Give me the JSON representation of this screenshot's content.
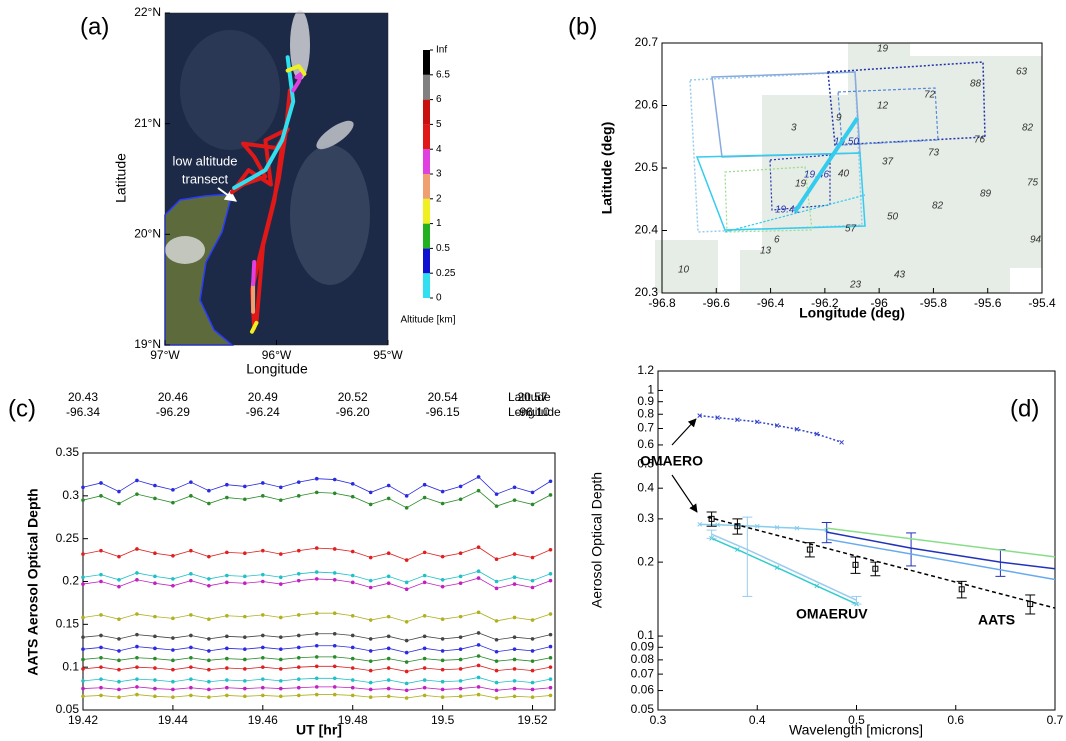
{
  "chart_data": [
    {
      "type": "map",
      "panel": "(a)",
      "xlabel": "Longitude",
      "ylabel": "Latitude",
      "xlim": [
        -97,
        -95
      ],
      "ylim": [
        19,
        22
      ],
      "xticks": [
        {
          "value": -97,
          "label": "97°W"
        },
        {
          "value": -96,
          "label": "96°W"
        },
        {
          "value": -95,
          "label": "95°W"
        }
      ],
      "yticks": [
        {
          "value": 19,
          "label": "19°N"
        },
        {
          "value": 20,
          "label": "20°N"
        },
        {
          "value": 21,
          "label": "21°N"
        },
        {
          "value": 22,
          "label": "22°N"
        }
      ],
      "annotation": [
        "low altitude",
        "transect"
      ],
      "track": [
        {
          "color": "#e01818",
          "lon": [
            -96.2,
            -96.22,
            -96.15,
            -96.05,
            -95.98,
            -95.92,
            -95.88
          ],
          "lat": [
            19.15,
            19.5,
            19.8,
            20.2,
            20.5,
            20.9,
            21.3
          ]
        },
        {
          "color": "#e01818",
          "lon": [
            -96.18,
            -96.12,
            -96.02,
            -95.95
          ],
          "lat": [
            19.2,
            19.9,
            20.3,
            20.8
          ]
        },
        {
          "color": "#f0a070",
          "lon": [
            -96.21,
            -96.21
          ],
          "lat": [
            19.3,
            19.55
          ]
        },
        {
          "color": "#e040e0",
          "lon": [
            -96.21,
            -96.2
          ],
          "lat": [
            19.55,
            19.75
          ]
        },
        {
          "color": "#e01818",
          "lon": [
            -96.4,
            -96.3,
            -96.1,
            -96.2,
            -96.3,
            -96.0,
            -95.9,
            -96.1,
            -96.05,
            -96.25,
            -96.4
          ],
          "lat": [
            20.38,
            20.45,
            20.52,
            20.7,
            20.82,
            20.78,
            20.95,
            20.85,
            20.45,
            20.58,
            20.38
          ]
        },
        {
          "color": "#30e0f0",
          "lon": [
            -96.38,
            -96.1,
            -95.95,
            -95.85,
            -95.9
          ],
          "lat": [
            20.42,
            20.58,
            20.85,
            21.2,
            21.6
          ]
        },
        {
          "color": "#e040e0",
          "lon": [
            -95.85,
            -95.8,
            -95.78,
            -95.82
          ],
          "lat": [
            21.3,
            21.38,
            21.45,
            21.42
          ]
        },
        {
          "color": "#f0f020",
          "lon": [
            -95.9,
            -95.8,
            -95.75
          ],
          "lat": [
            21.48,
            21.52,
            21.45
          ]
        },
        {
          "color": "#f0f020",
          "lon": [
            -96.22,
            -96.18
          ],
          "lat": [
            19.12,
            19.2
          ]
        }
      ],
      "colorbar": {
        "label": "Altitude [km]",
        "ticks": [
          0,
          0.25,
          0.5,
          1,
          2,
          3,
          4,
          5,
          6,
          6.5,
          "Inf"
        ],
        "colors": [
          "#30e0f0",
          "#1010d0",
          "#20b020",
          "#f0f020",
          "#f0a070",
          "#e040e0",
          "#e01818",
          "#c81010",
          "#808080",
          "#000000"
        ]
      }
    },
    {
      "type": "line",
      "panel": "(b)",
      "xlabel": "Longitude (deg)",
      "ylabel": "Latitude (deg)",
      "xlim": [
        -96.8,
        -95.4
      ],
      "ylim": [
        20.3,
        20.7
      ],
      "xticks": [
        -96.8,
        -96.6,
        -96.4,
        -96.2,
        -96,
        -95.8,
        -95.6,
        -95.4
      ],
      "yticks": [
        20.3,
        20.4,
        20.5,
        20.6,
        20.7
      ],
      "series": [
        {
          "color": "#33ccee",
          "x": [
            -96.31,
            -96.08
          ],
          "values": [
            20.43,
            20.58
          ]
        }
      ],
      "pixel_labels": [
        "19",
        "88",
        "63",
        "72",
        "12",
        "3",
        "9",
        "82",
        "19.50",
        "76",
        "73",
        "37",
        "40",
        "19.46",
        "19",
        "89",
        "75",
        "82",
        "50",
        "19.42",
        "57",
        "6",
        "13",
        "94",
        "10",
        "43",
        "23"
      ]
    },
    {
      "type": "line",
      "panel": "(c)",
      "xlabel": "UT [hr]",
      "ylabel": "AATS Aerosol Optical Depth",
      "xlim": [
        19.42,
        19.525
      ],
      "ylim": [
        0.05,
        0.35
      ],
      "xticks": [
        19.42,
        19.44,
        19.46,
        19.48,
        19.5,
        19.52
      ],
      "yticks": [
        0.05,
        0.1,
        0.15,
        0.2,
        0.25,
        0.3,
        0.35
      ],
      "x2label": "Latitude",
      "x3label": "Longitude",
      "x2ticks": [
        {
          "value": 19.42,
          "label": "20.43"
        },
        {
          "value": 19.44,
          "label": "20.46"
        },
        {
          "value": 19.46,
          "label": "20.49"
        },
        {
          "value": 19.48,
          "label": "20.52"
        },
        {
          "value": 19.5,
          "label": "20.54"
        },
        {
          "value": 19.52,
          "label": "20.57"
        }
      ],
      "x3ticks": [
        {
          "value": 19.42,
          "label": "-96.34"
        },
        {
          "value": 19.44,
          "label": "-96.29"
        },
        {
          "value": 19.46,
          "label": "-96.24"
        },
        {
          "value": 19.48,
          "label": "-96.20"
        },
        {
          "value": 19.5,
          "label": "-96.15"
        },
        {
          "value": 19.52,
          "label": "-96.10"
        }
      ],
      "x": [
        19.42,
        19.424,
        19.428,
        19.432,
        19.436,
        19.44,
        19.444,
        19.448,
        19.452,
        19.456,
        19.46,
        19.464,
        19.468,
        19.472,
        19.476,
        19.48,
        19.484,
        19.488,
        19.492,
        19.496,
        19.5,
        19.504,
        19.508,
        19.512,
        19.516,
        19.52,
        19.524
      ],
      "series": [
        {
          "color": "#2a2ae0",
          "values": [
            0.31,
            0.315,
            0.305,
            0.318,
            0.312,
            0.307,
            0.316,
            0.306,
            0.313,
            0.311,
            0.315,
            0.31,
            0.316,
            0.32,
            0.319,
            0.314,
            0.304,
            0.312,
            0.3,
            0.313,
            0.305,
            0.311,
            0.322,
            0.302,
            0.31,
            0.304,
            0.317
          ]
        },
        {
          "color": "#2a8a2a",
          "values": [
            0.295,
            0.3,
            0.291,
            0.302,
            0.297,
            0.292,
            0.3,
            0.291,
            0.298,
            0.296,
            0.3,
            0.295,
            0.3,
            0.304,
            0.303,
            0.299,
            0.29,
            0.297,
            0.286,
            0.298,
            0.291,
            0.296,
            0.306,
            0.288,
            0.295,
            0.29,
            0.301
          ]
        },
        {
          "color": "#e02020",
          "values": [
            0.232,
            0.236,
            0.229,
            0.238,
            0.233,
            0.23,
            0.236,
            0.229,
            0.234,
            0.233,
            0.236,
            0.232,
            0.236,
            0.239,
            0.238,
            0.235,
            0.228,
            0.233,
            0.225,
            0.234,
            0.229,
            0.233,
            0.24,
            0.226,
            0.232,
            0.228,
            0.237
          ]
        },
        {
          "color": "#20c0c8",
          "values": [
            0.205,
            0.208,
            0.202,
            0.21,
            0.206,
            0.203,
            0.209,
            0.203,
            0.207,
            0.206,
            0.208,
            0.205,
            0.209,
            0.211,
            0.21,
            0.207,
            0.201,
            0.206,
            0.199,
            0.207,
            0.202,
            0.206,
            0.212,
            0.2,
            0.205,
            0.201,
            0.209
          ]
        },
        {
          "color": "#c020c0",
          "values": [
            0.197,
            0.2,
            0.194,
            0.202,
            0.198,
            0.195,
            0.201,
            0.195,
            0.199,
            0.198,
            0.2,
            0.197,
            0.201,
            0.203,
            0.202,
            0.199,
            0.193,
            0.198,
            0.191,
            0.199,
            0.194,
            0.198,
            0.204,
            0.192,
            0.197,
            0.193,
            0.201
          ]
        },
        {
          "color": "#b0b020",
          "values": [
            0.158,
            0.161,
            0.156,
            0.162,
            0.159,
            0.157,
            0.161,
            0.156,
            0.16,
            0.159,
            0.161,
            0.158,
            0.161,
            0.163,
            0.163,
            0.16,
            0.155,
            0.159,
            0.153,
            0.16,
            0.156,
            0.159,
            0.164,
            0.154,
            0.158,
            0.155,
            0.162
          ]
        },
        {
          "color": "#444444",
          "values": [
            0.135,
            0.137,
            0.133,
            0.138,
            0.136,
            0.134,
            0.137,
            0.133,
            0.136,
            0.135,
            0.137,
            0.135,
            0.137,
            0.139,
            0.139,
            0.137,
            0.133,
            0.136,
            0.131,
            0.136,
            0.133,
            0.135,
            0.14,
            0.132,
            0.135,
            0.133,
            0.138
          ]
        },
        {
          "color": "#2a2ae0",
          "values": [
            0.121,
            0.123,
            0.119,
            0.124,
            0.122,
            0.12,
            0.123,
            0.119,
            0.122,
            0.121,
            0.123,
            0.121,
            0.123,
            0.125,
            0.125,
            0.123,
            0.119,
            0.122,
            0.117,
            0.122,
            0.119,
            0.121,
            0.126,
            0.118,
            0.121,
            0.119,
            0.124
          ]
        },
        {
          "color": "#2a8a2a",
          "values": [
            0.109,
            0.111,
            0.108,
            0.111,
            0.11,
            0.108,
            0.111,
            0.108,
            0.11,
            0.109,
            0.111,
            0.109,
            0.111,
            0.112,
            0.112,
            0.11,
            0.107,
            0.11,
            0.106,
            0.11,
            0.108,
            0.109,
            0.113,
            0.107,
            0.109,
            0.107,
            0.111
          ]
        },
        {
          "color": "#e02020",
          "values": [
            0.098,
            0.1,
            0.097,
            0.1,
            0.099,
            0.097,
            0.1,
            0.097,
            0.099,
            0.098,
            0.1,
            0.098,
            0.1,
            0.101,
            0.101,
            0.099,
            0.096,
            0.099,
            0.095,
            0.099,
            0.097,
            0.098,
            0.102,
            0.096,
            0.098,
            0.096,
            0.1
          ]
        },
        {
          "color": "#20c0c8",
          "values": [
            0.084,
            0.086,
            0.083,
            0.086,
            0.085,
            0.083,
            0.086,
            0.083,
            0.085,
            0.084,
            0.086,
            0.084,
            0.086,
            0.087,
            0.087,
            0.085,
            0.082,
            0.085,
            0.081,
            0.085,
            0.083,
            0.084,
            0.088,
            0.082,
            0.084,
            0.082,
            0.086
          ]
        },
        {
          "color": "#c020c0",
          "values": [
            0.075,
            0.076,
            0.074,
            0.077,
            0.075,
            0.074,
            0.076,
            0.074,
            0.076,
            0.075,
            0.076,
            0.075,
            0.076,
            0.077,
            0.077,
            0.076,
            0.074,
            0.075,
            0.073,
            0.076,
            0.074,
            0.075,
            0.077,
            0.073,
            0.075,
            0.074,
            0.076
          ]
        },
        {
          "color": "#b0b020",
          "values": [
            0.066,
            0.067,
            0.065,
            0.068,
            0.066,
            0.065,
            0.067,
            0.065,
            0.067,
            0.066,
            0.067,
            0.066,
            0.067,
            0.068,
            0.068,
            0.067,
            0.065,
            0.066,
            0.064,
            0.067,
            0.065,
            0.066,
            0.068,
            0.064,
            0.066,
            0.065,
            0.067
          ]
        }
      ]
    },
    {
      "type": "line",
      "panel": "(d)",
      "xlabel": "Wavelength [microns]",
      "ylabel": "Aerosol Optical Depth",
      "xlim": [
        0.3,
        0.7
      ],
      "ylim": [
        0.05,
        1.2
      ],
      "ylog": true,
      "xticks": [
        0.3,
        0.4,
        0.5,
        0.6,
        0.7
      ],
      "yticks": [
        0.05,
        0.06,
        0.07,
        0.08,
        0.09,
        0.1,
        0.2,
        0.3,
        0.4,
        0.5,
        0.6,
        0.7,
        0.8,
        0.9,
        1,
        1.2
      ],
      "annotations": [
        "OMAERO",
        "OMAERUV",
        "AATS"
      ],
      "series": [
        {
          "color": "#3344cc",
          "marker": "x",
          "dash": "2,2",
          "x": [
            0.342,
            0.36,
            0.38,
            0.4,
            0.42,
            0.44,
            0.46,
            0.485
          ],
          "values": [
            0.79,
            0.775,
            0.76,
            0.745,
            0.72,
            0.695,
            0.665,
            0.615
          ]
        },
        {
          "color": "#88ccee",
          "marker": "x",
          "x": [
            0.342,
            0.36,
            0.38,
            0.4,
            0.42,
            0.44,
            0.47
          ],
          "values": [
            0.285,
            0.284,
            0.282,
            0.28,
            0.277,
            0.275,
            0.27
          ]
        },
        {
          "color": "#33cccc",
          "marker": "x",
          "x": [
            0.354,
            0.38,
            0.42,
            0.46,
            0.5
          ],
          "values": [
            0.25,
            0.225,
            0.19,
            0.16,
            0.135
          ]
        },
        {
          "color": "#99ccee",
          "x": [
            0.354,
            0.39,
            0.5
          ],
          "values": [
            0.26,
            0.225,
            0.14
          ],
          "errors": [
            0.01,
            0.08,
            0.005
          ]
        },
        {
          "color": "#2233bb",
          "x": [
            0.47,
            0.555,
            0.645,
            0.7
          ],
          "values": [
            0.265,
            0.228,
            0.2,
            0.188
          ],
          "errors": [
            0.025,
            0.035,
            0.025,
            null
          ]
        },
        {
          "color": "#88dd88",
          "x": [
            0.47,
            0.7
          ],
          "values": [
            0.275,
            0.21
          ]
        },
        {
          "color": "#66aaee",
          "x": [
            0.47,
            0.7
          ],
          "values": [
            0.248,
            0.17
          ]
        },
        {
          "color": "#000000",
          "marker": "square",
          "line": false,
          "x": [
            0.354,
            0.38,
            0.453,
            0.499,
            0.519,
            0.606,
            0.675
          ],
          "values": [
            0.3,
            0.28,
            0.225,
            0.195,
            0.188,
            0.155,
            0.135
          ],
          "errors": [
            0.02,
            0.02,
            0.015,
            0.015,
            0.012,
            0.012,
            0.012
          ]
        },
        {
          "color": "#000000",
          "dash": "4,3",
          "x": [
            0.35,
            0.7
          ],
          "values": [
            0.305,
            0.13
          ]
        }
      ]
    }
  ]
}
